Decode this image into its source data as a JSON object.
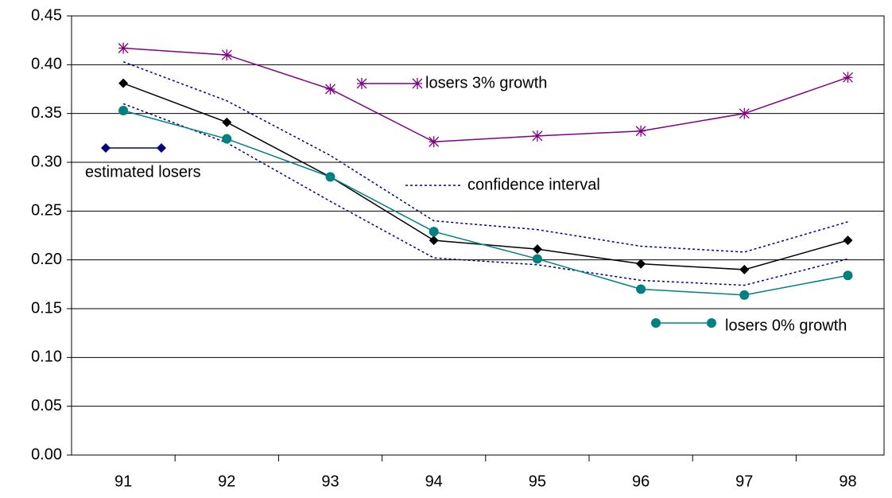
{
  "chart_data": {
    "type": "line",
    "categories": [
      "91",
      "92",
      "93",
      "94",
      "95",
      "96",
      "97",
      "98"
    ],
    "ylim": [
      0,
      0.45
    ],
    "yticks": [
      {
        "value": 0,
        "label": "0.00"
      },
      0.05,
      {
        "value": 0.1,
        "label": "0.10"
      },
      0.15,
      {
        "value": 0.2,
        "label": "0.20"
      },
      0.25,
      {
        "value": 0.3,
        "label": "0.30"
      },
      0.35,
      {
        "value": 0.4,
        "label": "0.40"
      },
      0.45
    ],
    "grid": true,
    "series": [
      {
        "name": "estimated losers",
        "color": "#000000",
        "marker": "diamond",
        "values": [
          0.381,
          0.341,
          0.285,
          0.22,
          0.211,
          0.196,
          0.19,
          0.22
        ]
      },
      {
        "name": "losers 3% growth",
        "color": "#800080",
        "marker": "asterisk",
        "values": [
          0.417,
          0.41,
          0.375,
          0.321,
          0.327,
          0.332,
          0.35,
          0.387
        ]
      },
      {
        "name": "confidence interval",
        "color": "#000080",
        "marker": "none",
        "dashed": true,
        "upper": [
          0.403,
          0.363,
          0.307,
          0.24,
          0.231,
          0.214,
          0.208,
          0.239
        ],
        "lower": [
          0.36,
          0.32,
          0.26,
          0.202,
          0.195,
          0.179,
          0.174,
          0.201
        ]
      },
      {
        "name": "losers 0% growth",
        "color": "#008080",
        "marker": "circle",
        "values": [
          0.353,
          0.324,
          0.285,
          0.229,
          0.201,
          0.17,
          0.164,
          0.184
        ]
      }
    ]
  }
}
